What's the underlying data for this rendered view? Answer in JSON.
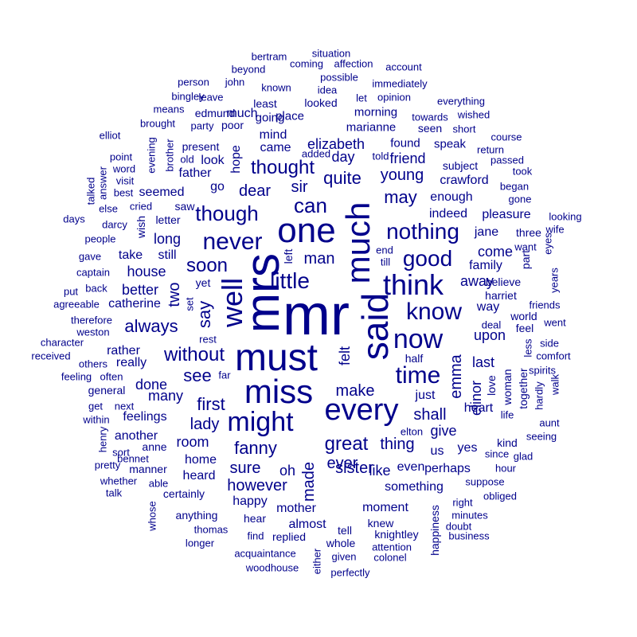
{
  "color": "#00008B",
  "words": [
    {
      "t": "mr",
      "s": 72
    },
    {
      "t": "mrs",
      "s": 60,
      "r": 1
    },
    {
      "t": "must",
      "s": 48
    },
    {
      "t": "said",
      "s": 46,
      "r": 1
    },
    {
      "t": "one",
      "s": 44
    },
    {
      "t": "much",
      "s": 42,
      "r": 1
    },
    {
      "t": "miss",
      "s": 42
    },
    {
      "t": "every",
      "s": 38
    },
    {
      "t": "think",
      "s": 36
    },
    {
      "t": "well",
      "s": 36,
      "r": 1
    },
    {
      "t": "might",
      "s": 34
    },
    {
      "t": "now",
      "s": 34
    },
    {
      "t": "never",
      "s": 30
    },
    {
      "t": "know",
      "s": 30
    },
    {
      "t": "time",
      "s": 30
    },
    {
      "t": "little",
      "s": 28
    },
    {
      "t": "nothing",
      "s": 28
    },
    {
      "t": "good",
      "s": 28
    },
    {
      "t": "though",
      "s": 26
    },
    {
      "t": "can",
      "s": 26
    },
    {
      "t": "soon",
      "s": 24
    },
    {
      "t": "without",
      "s": 24
    },
    {
      "t": "thought",
      "s": 24
    },
    {
      "t": "great",
      "s": 24
    },
    {
      "t": "fanny",
      "s": 22
    },
    {
      "t": "first",
      "s": 22
    },
    {
      "t": "may",
      "s": 22
    },
    {
      "t": "see",
      "s": 22
    },
    {
      "t": "quite",
      "s": 22
    },
    {
      "t": "always",
      "s": 22
    },
    {
      "t": "say",
      "s": 22,
      "r": 1
    },
    {
      "t": "dear",
      "s": 20
    },
    {
      "t": "man",
      "s": 20
    },
    {
      "t": "sir",
      "s": 20
    },
    {
      "t": "young",
      "s": 20
    },
    {
      "t": "lady",
      "s": 20
    },
    {
      "t": "two",
      "s": 20,
      "r": 1
    },
    {
      "t": "shall",
      "s": 20
    },
    {
      "t": "emma",
      "s": 20,
      "r": 1
    },
    {
      "t": "sister",
      "s": 20
    },
    {
      "t": "ever",
      "s": 20
    },
    {
      "t": "however",
      "s": 20
    },
    {
      "t": "thing",
      "s": 20
    },
    {
      "t": "made",
      "s": 20,
      "r": 1
    },
    {
      "t": "make",
      "s": 20
    },
    {
      "t": "sure",
      "s": 20
    },
    {
      "t": "elizabeth",
      "s": 18
    },
    {
      "t": "day",
      "s": 18
    },
    {
      "t": "friend",
      "s": 18
    },
    {
      "t": "come",
      "s": 18
    },
    {
      "t": "last",
      "s": 18
    },
    {
      "t": "give",
      "s": 18
    },
    {
      "t": "like",
      "s": 18
    },
    {
      "t": "house",
      "s": 18
    },
    {
      "t": "many",
      "s": 18
    },
    {
      "t": "upon",
      "s": 18
    },
    {
      "t": "away",
      "s": 18
    },
    {
      "t": "better",
      "s": 18
    },
    {
      "t": "room",
      "s": 18
    },
    {
      "t": "done",
      "s": 18
    },
    {
      "t": "long",
      "s": 18
    },
    {
      "t": "felt",
      "s": 18,
      "r": 1
    },
    {
      "t": "elinor",
      "s": 18,
      "r": 1
    },
    {
      "t": "oh",
      "s": 18
    },
    {
      "t": "much",
      "s": 16
    },
    {
      "t": "hope",
      "s": 16,
      "r": 1
    },
    {
      "t": "mind",
      "s": 16
    },
    {
      "t": "came",
      "s": 16
    },
    {
      "t": "go",
      "s": 16
    },
    {
      "t": "look",
      "s": 16
    },
    {
      "t": "father",
      "s": 16
    },
    {
      "t": "seemed",
      "s": 16
    },
    {
      "t": "enough",
      "s": 16
    },
    {
      "t": "indeed",
      "s": 16
    },
    {
      "t": "crawford",
      "s": 16
    },
    {
      "t": "family",
      "s": 16
    },
    {
      "t": "jane",
      "s": 16
    },
    {
      "t": "way",
      "s": 16
    },
    {
      "t": "still",
      "s": 16
    },
    {
      "t": "take",
      "s": 16
    },
    {
      "t": "catherine",
      "s": 16
    },
    {
      "t": "rather",
      "s": 16
    },
    {
      "t": "really",
      "s": 16
    },
    {
      "t": "heart",
      "s": 16
    },
    {
      "t": "even",
      "s": 16
    },
    {
      "t": "us",
      "s": 16
    },
    {
      "t": "yes",
      "s": 16
    },
    {
      "t": "another",
      "s": 16
    },
    {
      "t": "home",
      "s": 16
    },
    {
      "t": "heard",
      "s": 16
    },
    {
      "t": "happy",
      "s": 16
    },
    {
      "t": "mother",
      "s": 16
    },
    {
      "t": "moment",
      "s": 16
    },
    {
      "t": "something",
      "s": 16
    },
    {
      "t": "perhaps",
      "s": 16
    },
    {
      "t": "just",
      "s": 16
    },
    {
      "t": "feelings",
      "s": 16
    },
    {
      "t": "almost",
      "s": 16
    },
    {
      "t": "pleasure",
      "s": 16
    },
    {
      "t": "found",
      "s": 15
    },
    {
      "t": "morning",
      "s": 15
    },
    {
      "t": "marianne",
      "s": 15
    },
    {
      "t": "speak",
      "s": 15
    },
    {
      "t": "place",
      "s": 15
    },
    {
      "t": "going",
      "s": 15
    },
    {
      "t": "looked",
      "s": 14
    },
    {
      "t": "least",
      "s": 14
    },
    {
      "t": "edmund",
      "s": 14
    },
    {
      "t": "present",
      "s": 14
    },
    {
      "t": "poor",
      "s": 14
    },
    {
      "t": "seen",
      "s": 14
    },
    {
      "t": "subject",
      "s": 14
    },
    {
      "t": "half",
      "s": 14
    },
    {
      "t": "love",
      "s": 14,
      "r": 1
    },
    {
      "t": "woman",
      "s": 14,
      "r": 1
    },
    {
      "t": "kind",
      "s": 14
    },
    {
      "t": "certainly",
      "s": 14
    },
    {
      "t": "anything",
      "s": 14
    },
    {
      "t": "hear",
      "s": 14
    },
    {
      "t": "replied",
      "s": 14
    },
    {
      "t": "knew",
      "s": 14
    },
    {
      "t": "knightley",
      "s": 14
    },
    {
      "t": "tell",
      "s": 14
    },
    {
      "t": "whole",
      "s": 14
    },
    {
      "t": "anne",
      "s": 14
    },
    {
      "t": "manner",
      "s": 14
    },
    {
      "t": "general",
      "s": 14
    },
    {
      "t": "yet",
      "s": 14
    },
    {
      "t": "believe",
      "s": 14
    },
    {
      "t": "harriet",
      "s": 14
    },
    {
      "t": "three",
      "s": 14
    },
    {
      "t": "part",
      "s": 14,
      "r": 1
    },
    {
      "t": "world",
      "s": 14
    },
    {
      "t": "feel",
      "s": 14
    },
    {
      "t": "wish",
      "s": 14,
      "r": 1
    },
    {
      "t": "saw",
      "s": 14
    },
    {
      "t": "letter",
      "s": 14
    },
    {
      "t": "left",
      "s": 14,
      "r": 1
    },
    {
      "t": "happiness",
      "s": 14,
      "r": 1
    },
    {
      "t": "together",
      "s": 14,
      "r": 1
    },
    {
      "t": "less",
      "s": 13,
      "r": 1
    },
    {
      "t": "friends",
      "s": 13
    },
    {
      "t": "went",
      "s": 13
    },
    {
      "t": "spirits",
      "s": 13
    },
    {
      "t": "comfort",
      "s": 13
    },
    {
      "t": "side",
      "s": 13
    },
    {
      "t": "life",
      "s": 13
    },
    {
      "t": "suppose",
      "s": 13
    },
    {
      "t": "obliged",
      "s": 13
    },
    {
      "t": "right",
      "s": 13
    },
    {
      "t": "minutes",
      "s": 13
    },
    {
      "t": "doubt",
      "s": 13
    },
    {
      "t": "given",
      "s": 13
    },
    {
      "t": "colonel",
      "s": 13
    },
    {
      "t": "attention",
      "s": 13
    },
    {
      "t": "acquaintance",
      "s": 13
    },
    {
      "t": "woodhouse",
      "s": 13
    },
    {
      "t": "perfectly",
      "s": 13
    },
    {
      "t": "either",
      "s": 13,
      "r": 1
    },
    {
      "t": "find",
      "s": 13
    },
    {
      "t": "thomas",
      "s": 13
    },
    {
      "t": "longer",
      "s": 13
    },
    {
      "t": "opinion",
      "s": 13
    },
    {
      "t": "let",
      "s": 13
    },
    {
      "t": "immediately",
      "s": 13
    },
    {
      "t": "idea",
      "s": 13
    },
    {
      "t": "possible",
      "s": 13
    },
    {
      "t": "affection",
      "s": 13
    },
    {
      "t": "coming",
      "s": 13
    },
    {
      "t": "known",
      "s": 13
    },
    {
      "t": "beyond",
      "s": 13
    },
    {
      "t": "john",
      "s": 13
    },
    {
      "t": "person",
      "s": 13
    },
    {
      "t": "leave",
      "s": 13
    },
    {
      "t": "bingley",
      "s": 13
    },
    {
      "t": "means",
      "s": 13
    },
    {
      "t": "brought",
      "s": 13
    },
    {
      "t": "party",
      "s": 13
    },
    {
      "t": "elliot",
      "s": 13
    },
    {
      "t": "point",
      "s": 13
    },
    {
      "t": "word",
      "s": 13
    },
    {
      "t": "visit",
      "s": 13
    },
    {
      "t": "best",
      "s": 13
    },
    {
      "t": "cried",
      "s": 13
    },
    {
      "t": "darcy",
      "s": 13
    },
    {
      "t": "people",
      "s": 13
    },
    {
      "t": "gave",
      "s": 13
    },
    {
      "t": "captain",
      "s": 13
    },
    {
      "t": "put",
      "s": 13
    },
    {
      "t": "back",
      "s": 13
    },
    {
      "t": "agreeable",
      "s": 13
    },
    {
      "t": "therefore",
      "s": 13
    },
    {
      "t": "weston",
      "s": 13
    },
    {
      "t": "character",
      "s": 13
    },
    {
      "t": "received",
      "s": 13
    },
    {
      "t": "others",
      "s": 13
    },
    {
      "t": "feeling",
      "s": 13
    },
    {
      "t": "often",
      "s": 13
    },
    {
      "t": "get",
      "s": 13
    },
    {
      "t": "next",
      "s": 13
    },
    {
      "t": "within",
      "s": 13
    },
    {
      "t": "henry",
      "s": 13,
      "r": 1
    },
    {
      "t": "sort",
      "s": 13
    },
    {
      "t": "bennet",
      "s": 13
    },
    {
      "t": "pretty",
      "s": 13
    },
    {
      "t": "whether",
      "s": 13
    },
    {
      "t": "able",
      "s": 13
    },
    {
      "t": "talk",
      "s": 13
    },
    {
      "t": "whose",
      "s": 13,
      "r": 1
    },
    {
      "t": "rest",
      "s": 13
    },
    {
      "t": "far",
      "s": 13
    },
    {
      "t": "set",
      "s": 13,
      "r": 1
    },
    {
      "t": "days",
      "s": 13
    },
    {
      "t": "talked",
      "s": 13,
      "r": 1
    },
    {
      "t": "answer",
      "s": 13,
      "r": 1
    },
    {
      "t": "else",
      "s": 13
    },
    {
      "t": "evening",
      "s": 13,
      "r": 1
    },
    {
      "t": "brother",
      "s": 13,
      "r": 1
    },
    {
      "t": "old",
      "s": 13
    },
    {
      "t": "added",
      "s": 13
    },
    {
      "t": "told",
      "s": 13
    },
    {
      "t": "situation",
      "s": 13
    },
    {
      "t": "bertram",
      "s": 13
    },
    {
      "t": "account",
      "s": 13
    },
    {
      "t": "everything",
      "s": 13
    },
    {
      "t": "wished",
      "s": 13
    },
    {
      "t": "towards",
      "s": 13
    },
    {
      "t": "short",
      "s": 13
    },
    {
      "t": "course",
      "s": 13
    },
    {
      "t": "return",
      "s": 13
    },
    {
      "t": "passed",
      "s": 13
    },
    {
      "t": "took",
      "s": 13
    },
    {
      "t": "began",
      "s": 13
    },
    {
      "t": "gone",
      "s": 13
    },
    {
      "t": "looking",
      "s": 13
    },
    {
      "t": "wife",
      "s": 13
    },
    {
      "t": "want",
      "s": 13
    },
    {
      "t": "eyes",
      "s": 13,
      "r": 1
    },
    {
      "t": "years",
      "s": 13,
      "r": 1
    },
    {
      "t": "end",
      "s": 13
    },
    {
      "t": "till",
      "s": 13
    },
    {
      "t": "deal",
      "s": 13
    },
    {
      "t": "hardly",
      "s": 13,
      "r": 1
    },
    {
      "t": "walk",
      "s": 13,
      "r": 1
    },
    {
      "t": "aunt",
      "s": 13
    },
    {
      "t": "seeing",
      "s": 13
    },
    {
      "t": "since",
      "s": 13
    },
    {
      "t": "glad",
      "s": 13
    },
    {
      "t": "hour",
      "s": 13
    },
    {
      "t": "business",
      "s": 13
    },
    {
      "t": "elton",
      "s": 13
    }
  ]
}
